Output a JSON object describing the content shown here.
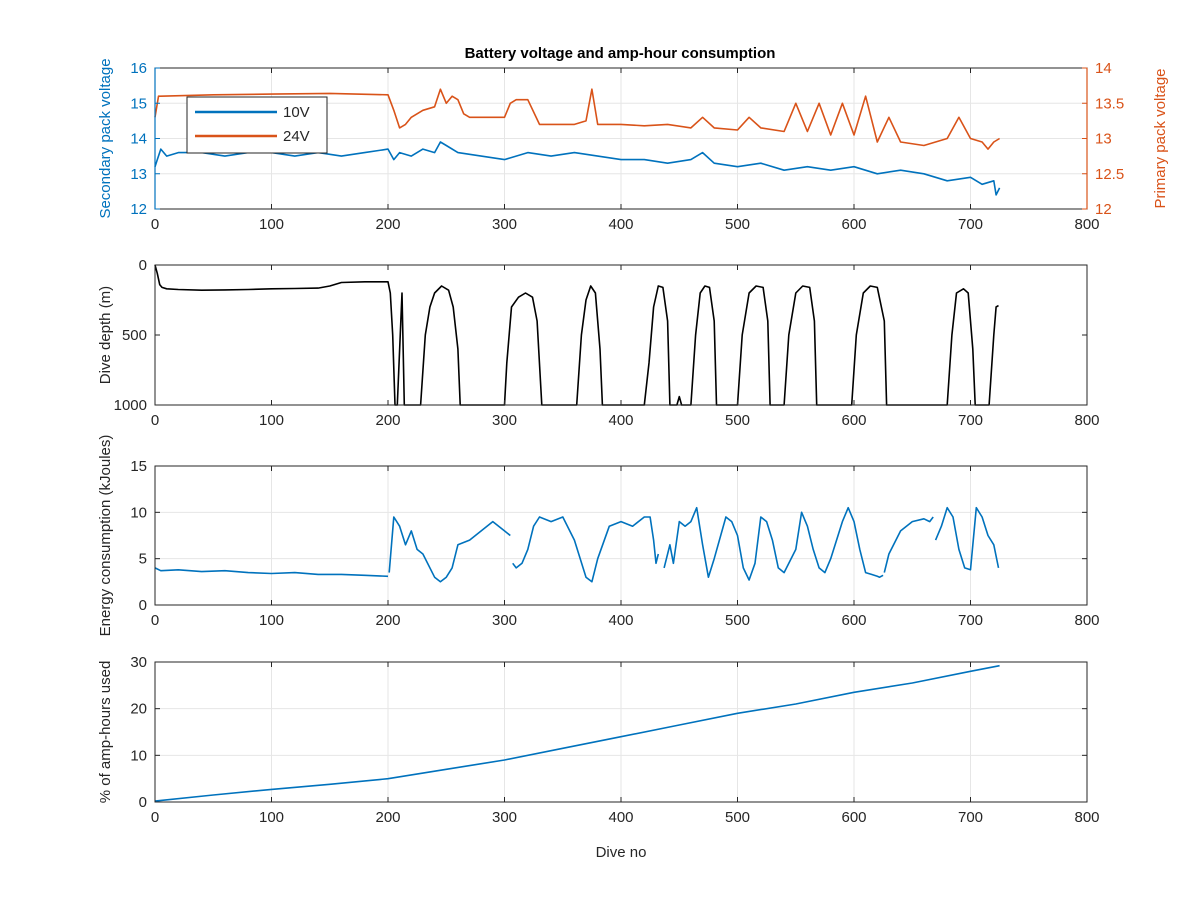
{
  "figure": {
    "title": "Battery voltage and amp-hour consumption",
    "colors": {
      "blue": "#0072BD",
      "orange": "#D95319",
      "black": "#000000",
      "grid": "#e6e6e6"
    }
  },
  "chart_data": [
    {
      "type": "line",
      "title": "Battery voltage and amp-hour consumption",
      "xlabel": "",
      "ylabel": "Secondary pack voltage",
      "ylabel_right": "Primary pack voltage",
      "xlim": [
        0,
        800
      ],
      "ylim": [
        12,
        16
      ],
      "ylim_right": [
        12,
        14
      ],
      "xticks": [
        0,
        100,
        200,
        300,
        400,
        500,
        600,
        700,
        800
      ],
      "yticks": [
        12,
        13,
        14,
        15,
        16
      ],
      "yticks_right": [
        12,
        12.5,
        13,
        13.5,
        14
      ],
      "ytick_labels_right": [
        "12",
        "12.5",
        "13",
        "13.5",
        "14"
      ],
      "grid": true,
      "legend": "top-left",
      "series": [
        {
          "name": "10V",
          "axis": "left",
          "color": "#0072BD",
          "x": [
            0,
            2,
            5,
            10,
            20,
            40,
            60,
            80,
            100,
            120,
            140,
            160,
            180,
            200,
            205,
            210,
            220,
            230,
            240,
            245,
            250,
            260,
            280,
            300,
            320,
            340,
            360,
            380,
            400,
            420,
            440,
            460,
            470,
            480,
            500,
            520,
            540,
            560,
            580,
            600,
            620,
            640,
            660,
            680,
            700,
            710,
            720,
            722,
            725
          ],
          "y": [
            13.2,
            13.4,
            13.7,
            13.5,
            13.6,
            13.6,
            13.5,
            13.6,
            13.6,
            13.5,
            13.6,
            13.5,
            13.6,
            13.7,
            13.4,
            13.6,
            13.5,
            13.7,
            13.6,
            13.9,
            13.8,
            13.6,
            13.5,
            13.4,
            13.6,
            13.5,
            13.6,
            13.5,
            13.4,
            13.4,
            13.3,
            13.4,
            13.6,
            13.3,
            13.2,
            13.3,
            13.1,
            13.2,
            13.1,
            13.2,
            13.0,
            13.1,
            13.0,
            12.8,
            12.9,
            12.7,
            12.8,
            12.4,
            12.6
          ]
        },
        {
          "name": "24V",
          "axis": "right",
          "color": "#D95319",
          "x": [
            0,
            3,
            5,
            50,
            100,
            150,
            200,
            205,
            210,
            215,
            220,
            230,
            240,
            245,
            250,
            255,
            260,
            265,
            270,
            280,
            300,
            305,
            310,
            315,
            320,
            330,
            340,
            360,
            370,
            375,
            380,
            385,
            400,
            420,
            440,
            460,
            470,
            480,
            500,
            510,
            520,
            540,
            550,
            560,
            570,
            580,
            590,
            600,
            610,
            620,
            630,
            640,
            660,
            680,
            690,
            700,
            710,
            715,
            720,
            725
          ],
          "y": [
            13.3,
            13.6,
            13.6,
            13.62,
            13.63,
            13.64,
            13.62,
            13.4,
            13.15,
            13.2,
            13.3,
            13.4,
            13.45,
            13.7,
            13.5,
            13.6,
            13.55,
            13.35,
            13.3,
            13.3,
            13.3,
            13.5,
            13.55,
            13.55,
            13.55,
            13.2,
            13.2,
            13.2,
            13.25,
            13.7,
            13.2,
            13.2,
            13.2,
            13.18,
            13.2,
            13.15,
            13.3,
            13.15,
            13.12,
            13.3,
            13.15,
            13.1,
            13.5,
            13.1,
            13.5,
            13.05,
            13.5,
            13.05,
            13.6,
            12.95,
            13.3,
            12.95,
            12.9,
            13.0,
            13.3,
            13.0,
            12.95,
            12.85,
            12.95,
            13.0
          ]
        }
      ]
    },
    {
      "type": "line",
      "xlabel": "",
      "ylabel": "Dive depth (m)",
      "xlim": [
        0,
        800
      ],
      "ylim": [
        0,
        1000
      ],
      "y_reversed": true,
      "xticks": [
        0,
        100,
        200,
        300,
        400,
        500,
        600,
        700,
        800
      ],
      "yticks": [
        0,
        500,
        1000
      ],
      "grid": false,
      "series": [
        {
          "name": "",
          "color": "#000000",
          "x": [
            0,
            2,
            4,
            6,
            10,
            20,
            40,
            60,
            80,
            100,
            120,
            140,
            150,
            160,
            180,
            200,
            202,
            204,
            206,
            208,
            212,
            214,
            216,
            218,
            220,
            228,
            232,
            236,
            240,
            246,
            252,
            256,
            260,
            262,
            264,
            268,
            300,
            302,
            306,
            312,
            318,
            324,
            328,
            332,
            336,
            340,
            362,
            366,
            370,
            374,
            378,
            382,
            384,
            388,
            420,
            424,
            428,
            432,
            436,
            440,
            442,
            446,
            448,
            450,
            452,
            454,
            460,
            464,
            468,
            472,
            476,
            480,
            482,
            486,
            500,
            504,
            510,
            516,
            522,
            526,
            528,
            532,
            540,
            544,
            550,
            556,
            562,
            566,
            568,
            572,
            598,
            602,
            608,
            614,
            620,
            626,
            628,
            632,
            680,
            684,
            688,
            694,
            698,
            702,
            704,
            708,
            716,
            720,
            722,
            724
          ],
          "y": [
            0,
            60,
            140,
            160,
            170,
            175,
            180,
            178,
            175,
            170,
            168,
            165,
            150,
            125,
            120,
            120,
            200,
            500,
            1000,
            1000,
            200,
            1000,
            1000,
            1000,
            1000,
            1000,
            500,
            300,
            200,
            150,
            180,
            300,
            600,
            1000,
            1000,
            1000,
            1000,
            700,
            300,
            230,
            200,
            230,
            400,
            1000,
            1000,
            1000,
            1000,
            500,
            250,
            150,
            200,
            600,
            1000,
            1000,
            1000,
            700,
            300,
            150,
            160,
            400,
            1000,
            1000,
            1000,
            940,
            1000,
            1000,
            1000,
            500,
            200,
            150,
            160,
            400,
            1000,
            1000,
            1000,
            500,
            200,
            150,
            160,
            400,
            1000,
            1000,
            1000,
            500,
            200,
            150,
            160,
            400,
            1000,
            1000,
            1000,
            500,
            200,
            150,
            160,
            400,
            1000,
            1000,
            1000,
            500,
            200,
            170,
            200,
            600,
            1000,
            1000,
            1000,
            500,
            300,
            290
          ]
        }
      ]
    },
    {
      "type": "line",
      "xlabel": "",
      "ylabel": "Energy consumption (kJoules)",
      "xlim": [
        0,
        800
      ],
      "ylim": [
        0,
        15
      ],
      "xticks": [
        0,
        100,
        200,
        300,
        400,
        500,
        600,
        700,
        800
      ],
      "yticks": [
        0,
        5,
        10,
        15
      ],
      "grid": true,
      "series": [
        {
          "name": "",
          "color": "#0072BD",
          "segments": [
            {
              "x": [
                0,
                5,
                20,
                40,
                60,
                80,
                100,
                120,
                140,
                160,
                180,
                200
              ],
              "y": [
                4.0,
                3.7,
                3.8,
                3.6,
                3.7,
                3.5,
                3.4,
                3.5,
                3.3,
                3.3,
                3.2,
                3.1
              ]
            },
            {
              "x": [
                201,
                205,
                210,
                215,
                220,
                225,
                230,
                240,
                245,
                250,
                255,
                260,
                270,
                280,
                290,
                300,
                305
              ],
              "y": [
                3.5,
                9.5,
                8.5,
                6.5,
                8.0,
                6.0,
                5.5,
                3.0,
                2.5,
                3.0,
                4.0,
                6.5,
                7.0,
                8.0,
                9.0,
                8.0,
                7.5
              ]
            },
            {
              "x": [
                307,
                310,
                315,
                320,
                325,
                330,
                340,
                350,
                360,
                370,
                375,
                380,
                390,
                400,
                410,
                420,
                425,
                428,
                430,
                432
              ],
              "y": [
                4.5,
                4.0,
                4.5,
                6.0,
                8.5,
                9.5,
                9.0,
                9.5,
                7.0,
                3.0,
                2.5,
                5.0,
                8.5,
                9.0,
                8.5,
                9.5,
                9.5,
                7.0,
                4.5,
                5.5
              ]
            },
            {
              "x": [
                437,
                440,
                442,
                445,
                450,
                455,
                460,
                465,
                470,
                475,
                480,
                490,
                495,
                500,
                505,
                510,
                515,
                520,
                525,
                530,
                535,
                540,
                550,
                555,
                560,
                565,
                570,
                575,
                580,
                590,
                595,
                600,
                605,
                610,
                615,
                620,
                622,
                625
              ],
              "y": [
                4.0,
                5.5,
                6.5,
                4.5,
                9.0,
                8.5,
                9.0,
                10.5,
                6.5,
                3.0,
                5.0,
                9.5,
                9.0,
                7.5,
                4.0,
                2.7,
                4.5,
                9.5,
                9.0,
                7.0,
                4.0,
                3.5,
                6.0,
                10.0,
                8.5,
                6.0,
                4.0,
                3.5,
                5.0,
                9.0,
                10.5,
                9.0,
                6.0,
                3.5,
                3.3,
                3.1,
                3.0,
                3.2
              ]
            },
            {
              "x": [
                626,
                630,
                640,
                650,
                660,
                665,
                668
              ],
              "y": [
                3.5,
                5.5,
                8.0,
                9.0,
                9.3,
                9.0,
                9.5
              ]
            },
            {
              "x": [
                670,
                675,
                680,
                685,
                690,
                695,
                700,
                705,
                710,
                715,
                720,
                724
              ],
              "y": [
                7.0,
                8.5,
                10.5,
                9.5,
                6.0,
                4.0,
                3.8,
                10.5,
                9.5,
                7.5,
                6.5,
                4.0
              ]
            }
          ]
        }
      ]
    },
    {
      "type": "line",
      "xlabel": "Dive no",
      "ylabel": "% of amp-hours used",
      "xlim": [
        0,
        800
      ],
      "ylim": [
        0,
        30
      ],
      "xticks": [
        0,
        100,
        200,
        300,
        400,
        500,
        600,
        700,
        800
      ],
      "yticks": [
        0,
        10,
        20,
        30
      ],
      "grid": true,
      "series": [
        {
          "name": "",
          "color": "#0072BD",
          "x": [
            0,
            50,
            100,
            150,
            200,
            250,
            300,
            350,
            400,
            450,
            500,
            550,
            600,
            650,
            700,
            725
          ],
          "y": [
            0.2,
            1.5,
            2.7,
            3.8,
            5.0,
            7.0,
            9.0,
            11.5,
            14.0,
            16.5,
            19.0,
            21.0,
            23.5,
            25.5,
            28.0,
            29.2
          ]
        }
      ]
    }
  ]
}
